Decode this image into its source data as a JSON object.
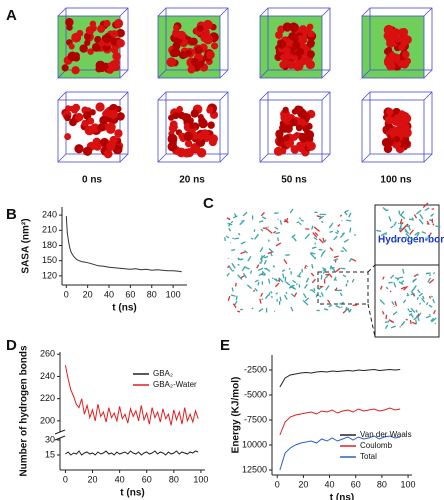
{
  "panel_a": {
    "label": "A",
    "times": [
      "0 ns",
      "20 ns",
      "50 ns",
      "100 ns"
    ]
  },
  "panel_c": {
    "label": "C",
    "annotation": "Hydrogen-bond"
  },
  "chart_data": [
    {
      "type": "line",
      "label": "B",
      "xlabel": "t (ns)",
      "ylabel": "SASA (nm²)",
      "x": [
        0,
        1,
        2,
        3,
        4,
        5,
        7,
        10,
        12,
        15,
        18,
        20,
        25,
        30,
        35,
        40,
        45,
        50,
        55,
        60,
        65,
        70,
        75,
        80,
        85,
        90,
        95,
        100,
        105,
        108
      ],
      "values": [
        238,
        205,
        190,
        178,
        170,
        165,
        158,
        152,
        150,
        148,
        147,
        146,
        143,
        140,
        139,
        137,
        136,
        135,
        134,
        133,
        134,
        132,
        133,
        131,
        132,
        131,
        130,
        130,
        129,
        128
      ],
      "color": "#333333",
      "xlim": [
        -4,
        113
      ],
      "xticks": [
        0,
        20,
        40,
        60,
        80,
        100
      ],
      "ylim": [
        102,
        256
      ],
      "yticks": [
        120,
        150,
        180,
        210,
        240
      ]
    },
    {
      "type": "line",
      "label": "D",
      "xlabel": "t (ns)",
      "ylabel": "Number of hydrogen bonds",
      "x": [
        0,
        2,
        4,
        6,
        8,
        10,
        12,
        14,
        16,
        18,
        20,
        22,
        24,
        26,
        28,
        30,
        32,
        34,
        36,
        38,
        40,
        42,
        44,
        46,
        48,
        50,
        52,
        54,
        56,
        58,
        60,
        62,
        64,
        66,
        68,
        70,
        72,
        74,
        76,
        78,
        80,
        82,
        84,
        86,
        88,
        90,
        92,
        94,
        96,
        98
      ],
      "series": [
        {
          "name": "GBA₂",
          "color": "#222222",
          "values": [
            16,
            18,
            15,
            17,
            16,
            19,
            15,
            17,
            18,
            16,
            17,
            15,
            18,
            16,
            17,
            19,
            16,
            17,
            15,
            18,
            16,
            17,
            18,
            16,
            19,
            17,
            16,
            18,
            15,
            17,
            18,
            16,
            17,
            19,
            16,
            18,
            17,
            15,
            18,
            16,
            17,
            19,
            16,
            18,
            17,
            16,
            18,
            17,
            19,
            18
          ]
        },
        {
          "name": "GBA₂-Water",
          "color": "#e02020",
          "values": [
            250,
            238,
            228,
            222,
            215,
            212,
            220,
            206,
            214,
            203,
            210,
            200,
            215,
            204,
            208,
            199,
            212,
            203,
            207,
            200,
            213,
            202,
            206,
            198,
            211,
            204,
            209,
            200,
            214,
            201,
            207,
            197,
            212,
            203,
            208,
            199,
            211,
            202,
            206,
            196,
            210,
            201,
            208,
            197,
            212,
            200,
            206,
            199,
            209,
            202
          ]
        }
      ],
      "legend": "upper right",
      "xlim": [
        -4,
        103
      ],
      "xticks": [
        0,
        20,
        40,
        60,
        80,
        100
      ],
      "ylim": [
        0,
        262
      ],
      "y_break": [
        32,
        190
      ],
      "yticks": [
        15,
        30,
        200,
        220,
        240,
        260
      ]
    },
    {
      "type": "line",
      "label": "E",
      "xlabel": "t (ns)",
      "ylabel": "Energy (KJ/mol)",
      "x": [
        2,
        6,
        10,
        14,
        18,
        22,
        26,
        30,
        34,
        38,
        42,
        46,
        50,
        54,
        58,
        62,
        66,
        70,
        74,
        78,
        82,
        86,
        90,
        94
      ],
      "series": [
        {
          "name": "Van der Waals",
          "color": "#222222",
          "values": [
            -4200,
            -3300,
            -3000,
            -2900,
            -2800,
            -2750,
            -2800,
            -2700,
            -2650,
            -2700,
            -2600,
            -2650,
            -2600,
            -2550,
            -2600,
            -2500,
            -2550,
            -2500,
            -2450,
            -2550,
            -2500,
            -2450,
            -2500,
            -2450
          ]
        },
        {
          "name": "Coulomb",
          "color": "#e02020",
          "values": [
            -9000,
            -7700,
            -7200,
            -7000,
            -6900,
            -6800,
            -6700,
            -6900,
            -6600,
            -6700,
            -6500,
            -6800,
            -6600,
            -6500,
            -6700,
            -6400,
            -6600,
            -6500,
            -6400,
            -6600,
            -6500,
            -6300,
            -6500,
            -6400
          ]
        },
        {
          "name": "Total",
          "color": "#2a5fd0",
          "values": [
            -12500,
            -10800,
            -10300,
            -10000,
            -9800,
            -9700,
            -9600,
            -9800,
            -9400,
            -9600,
            -9300,
            -9600,
            -9400,
            -9200,
            -9500,
            -9200,
            -9400,
            -9300,
            -9100,
            -9400,
            -9200,
            -9100,
            -9300,
            -9200
          ]
        }
      ],
      "legend": "lower right",
      "xlim": [
        -4,
        103
      ],
      "xticks": [
        0,
        20,
        40,
        60,
        80,
        100
      ],
      "ylim": [
        -13000,
        -1000
      ],
      "yticks": [
        -2500,
        -5000,
        -7500,
        {
          "value": -10000,
          "label": "10000"
        },
        {
          "value": -12500,
          "label": "12500"
        }
      ]
    }
  ]
}
